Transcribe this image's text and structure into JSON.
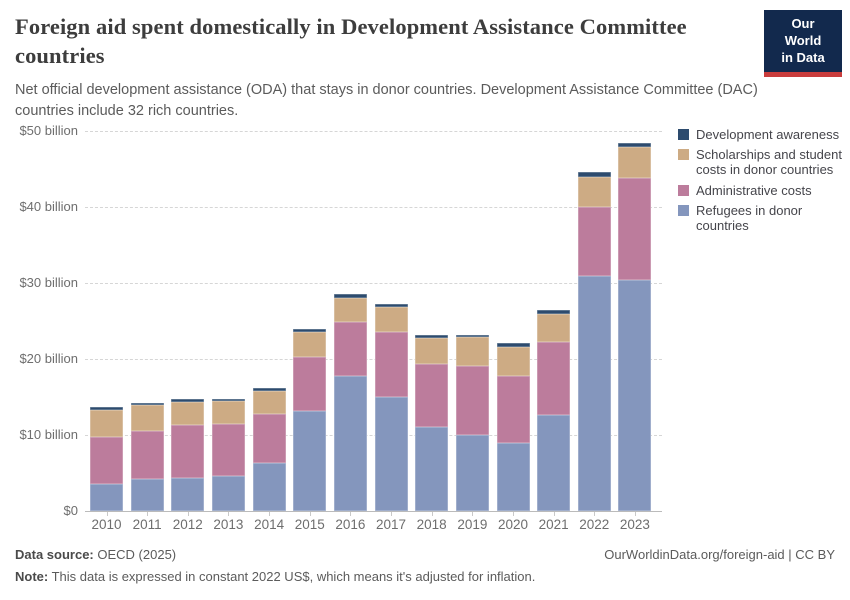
{
  "header": {
    "title": "Foreign aid spent domestically in Development Assistance Committee countries",
    "subtitle": "Net official development assistance (ODA) that stays in donor countries. Development Assistance Committee (DAC) countries include 32 rich countries.",
    "logo_line1": "Our World",
    "logo_line2": "in Data"
  },
  "chart_data": {
    "type": "bar",
    "stacked": true,
    "title": "Foreign aid spent domestically in Development Assistance Committee countries",
    "xlabel": "",
    "ylabel": "",
    "unit": "constant 2022 US$ billions",
    "ylim": [
      0,
      50
    ],
    "grid": "horizontal-dashed",
    "legend_position": "right",
    "categories": [
      "2010",
      "2011",
      "2012",
      "2013",
      "2014",
      "2015",
      "2016",
      "2017",
      "2018",
      "2019",
      "2020",
      "2021",
      "2022",
      "2023"
    ],
    "y_ticks": [
      {
        "value": 0,
        "label": "$0"
      },
      {
        "value": 10,
        "label": "$10 billion"
      },
      {
        "value": 20,
        "label": "$20 billion"
      },
      {
        "value": 30,
        "label": "$30 billion"
      },
      {
        "value": 40,
        "label": "$40 billion"
      },
      {
        "value": 50,
        "label": "$50 billion"
      }
    ],
    "series": [
      {
        "name": "Refugees in donor countries",
        "color": "#8496bd",
        "values": [
          3.6,
          4.2,
          4.3,
          4.6,
          6.3,
          13.2,
          17.7,
          15.0,
          11.1,
          10.0,
          8.9,
          12.6,
          30.9,
          30.4
        ]
      },
      {
        "name": "Administrative costs",
        "color": "#bc7c9c",
        "values": [
          6.2,
          6.3,
          7.0,
          6.9,
          6.5,
          7.1,
          7.2,
          8.6,
          8.3,
          9.1,
          8.8,
          9.7,
          9.1,
          13.4
        ]
      },
      {
        "name": "Scholarships and student costs in donor countries",
        "color": "#cdab84",
        "values": [
          3.5,
          3.4,
          3.1,
          3.0,
          3.0,
          3.2,
          3.1,
          3.3,
          3.4,
          3.75,
          3.9,
          3.6,
          4.0,
          4.1
        ]
      },
      {
        "name": "Development awareness",
        "color": "#2d4b6e",
        "values": [
          0.35,
          0.3,
          0.35,
          0.3,
          0.35,
          0.4,
          0.5,
          0.4,
          0.4,
          0.35,
          0.45,
          0.5,
          0.6,
          0.5
        ]
      }
    ],
    "totals": [
      13.65,
      14.2,
      14.75,
      14.8,
      16.15,
      23.9,
      28.5,
      27.3,
      23.2,
      23.2,
      22.05,
      26.4,
      44.6,
      48.4
    ]
  },
  "footer": {
    "source_label": "Data source:",
    "source_value": "OECD (2025)",
    "note_label": "Note:",
    "note_value": "This data is expressed in constant 2022 US$, which means it's adjusted for inflation.",
    "credit": "OurWorldinData.org/foreign-aid | CC BY"
  },
  "colors": {
    "logo_navy": "#12294d",
    "logo_red": "#c93c3c",
    "gridline": "#d6d6d6",
    "axis_text": "#6e6e6e"
  }
}
